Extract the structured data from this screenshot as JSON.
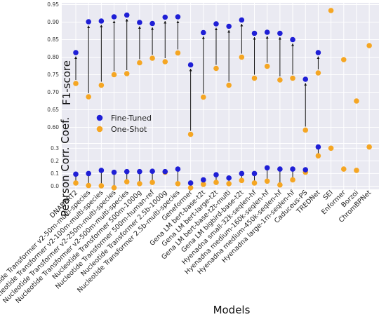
{
  "chart_data": [
    {
      "type": "scatter",
      "panel": "f1-score",
      "ylabel": "F1-score",
      "ylim": [
        0.555,
        0.955
      ],
      "yticks": [
        "0.60",
        "0.65",
        "0.70",
        "0.75",
        "0.80",
        "0.85",
        "0.90",
        "0.95"
      ],
      "grid": true,
      "legend": "bottom-left",
      "categories": [
        "DNABERT2",
        "Nucleotide Transformer v2-50m-multi-species",
        "Nucleotide Transformer v2-100m-multi-species",
        "Nucleotide Transformer v2-250m-multi-species",
        "Nucleotide Transformer v2-500m-multi-species",
        "Nucleotide Transformer 500m-1000g",
        "Nucleotide Transformer 500m-human-ref",
        "Nucleotide Transformer 2.5b-1000g",
        "Nucleotide Transformer 2.5b-multi-species",
        "Geneformer",
        "Gena LM bert-base-t2t",
        "Gena LM bert-large-t2t",
        "Gena LM bert-base-t2t-multi",
        "Gena LM bigbird-base-t2t",
        "Hyenadna small-32k-seqlen-hf",
        "Hyenadna medium-160k-seqlen-hf",
        "Hyenadna medium-450k-seqlen-hf",
        "Hyenadna large-1m-seqlen-hf",
        "Caduceus-PS",
        "TREDNet",
        "SEI",
        "Enformer",
        "Borzoi",
        "ChromBPNet"
      ],
      "series": [
        {
          "name": "Fine-Tuned",
          "color": "#1f1fd6",
          "values": [
            0.813,
            0.901,
            0.903,
            0.915,
            0.92,
            0.899,
            0.896,
            0.914,
            0.915,
            0.778,
            0.87,
            0.895,
            0.888,
            0.906,
            0.868,
            0.871,
            0.868,
            0.85,
            0.737,
            0.813,
            null,
            null,
            null,
            null
          ]
        },
        {
          "name": "One-Shot",
          "color": "#f5a623",
          "values": [
            0.725,
            0.687,
            0.72,
            0.75,
            0.753,
            0.784,
            0.797,
            0.787,
            0.812,
            0.58,
            0.686,
            0.768,
            0.72,
            0.8,
            0.74,
            0.774,
            0.735,
            0.74,
            0.592,
            0.755,
            0.933,
            0.793,
            0.675,
            0.833
          ]
        }
      ]
    },
    {
      "type": "scatter",
      "panel": "pearson",
      "ylabel": "Pearson Corr. Coef.",
      "xlabel": "Models",
      "ylim": [
        -0.025,
        0.335
      ],
      "yticks": [
        "0.0",
        "0.1",
        "0.2",
        "0.3"
      ],
      "grid": true,
      "categories": [
        "DNABERT2",
        "Nucleotide Transformer v2-50m-multi-species",
        "Nucleotide Transformer v2-100m-multi-species",
        "Nucleotide Transformer v2-250m-multi-species",
        "Nucleotide Transformer v2-500m-multi-species",
        "Nucleotide Transformer 500m-1000g",
        "Nucleotide Transformer 500m-human-ref",
        "Nucleotide Transformer 2.5b-1000g",
        "Nucleotide Transformer 2.5b-multi-species",
        "Geneformer",
        "Gena LM bert-base-t2t",
        "Gena LM bert-large-t2t",
        "Gena LM bert-base-t2t-multi",
        "Gena LM bigbird-base-t2t",
        "Hyenadna small-32k-seqlen-hf",
        "Hyenadna medium-160k-seqlen-hf",
        "Hyenadna medium-450k-seqlen-hf",
        "Hyenadna large-1m-seqlen-hf",
        "Caduceus-PS",
        "TREDNet",
        "SEI",
        "Enformer",
        "Borzoi",
        "ChromBPNet"
      ],
      "series": [
        {
          "name": "Fine-Tuned",
          "color": "#1f1fd6",
          "values": [
            0.095,
            0.1,
            0.125,
            0.11,
            0.115,
            0.115,
            0.118,
            0.115,
            0.135,
            0.025,
            0.05,
            0.09,
            0.065,
            0.1,
            0.1,
            0.145,
            0.135,
            0.135,
            0.13,
            0.31,
            null,
            null,
            null,
            null
          ]
        },
        {
          "name": "One-Shot",
          "color": "#f5a623",
          "values": [
            0.025,
            0.005,
            0.003,
            -0.012,
            0.035,
            0.02,
            0.03,
            0.11,
            0.02,
            -0.012,
            0.015,
            0.03,
            0.02,
            0.045,
            0.025,
            0.04,
            0.01,
            0.05,
            0.11,
            0.24,
            0.3,
            0.135,
            0.125,
            0.31
          ]
        }
      ]
    }
  ]
}
